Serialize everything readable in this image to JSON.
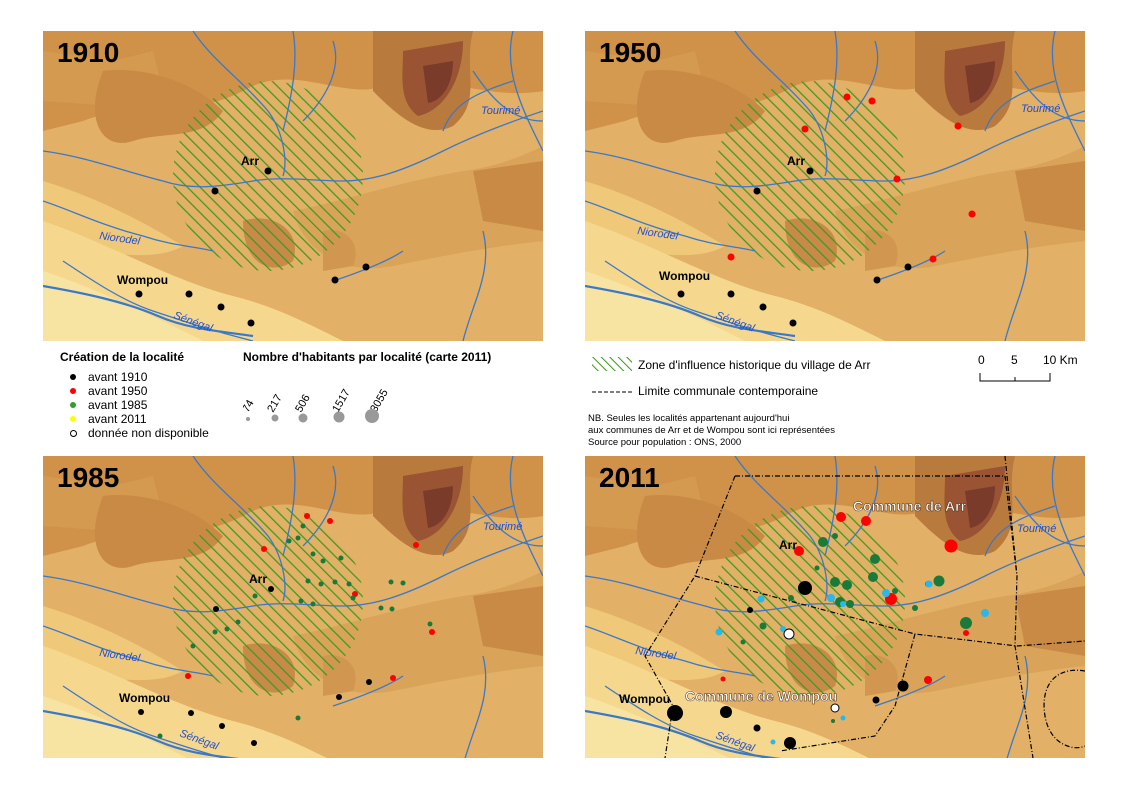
{
  "maps": [
    {
      "year": "1910",
      "labels": {
        "arr": "Arr",
        "wompou": "Wompou",
        "niorodel": "Niorodel",
        "senegal": "Sénégal",
        "tourime": "Tourimé"
      }
    },
    {
      "year": "1950",
      "labels": {
        "arr": "Arr",
        "wompou": "Wompou",
        "niorodel": "Niorodel",
        "senegal": "Sénégal",
        "tourime": "Tourimé"
      }
    },
    {
      "year": "1985",
      "labels": {
        "arr": "Arr",
        "wompou": "Wompou",
        "niorodel": "Niorodel",
        "senegal": "Sénégal",
        "tourime": "Tourimé"
      }
    },
    {
      "year": "2011",
      "labels": {
        "arr": "Arr",
        "wompou": "Wompou",
        "niorodel": "Niorodel",
        "senegal": "Sénégal",
        "tourime": "Tourimé",
        "commune_arr": "Commune de Arr",
        "commune_wompou": "Commune de Wompou"
      }
    }
  ],
  "legend": {
    "creation_title": "Création de la localité",
    "creation_items": [
      {
        "label": "avant 1910",
        "color": "#000000"
      },
      {
        "label": "avant 1950",
        "color": "#ff0000"
      },
      {
        "label": "avant 1985",
        "color": "#2ca02c"
      },
      {
        "label": "avant 2011",
        "color": "#ffff00"
      },
      {
        "label": "donnée non disponible",
        "color": "#ffffff"
      }
    ],
    "pop_title": "Nombre d'habitants par localité (carte 2011)",
    "pop_values": [
      "74",
      "217",
      "506",
      "1517",
      "3055"
    ],
    "zone_label": "Zone d'influence historique du village de Arr",
    "limit_label": "Limite communale contemporaine",
    "scale": {
      "labels": [
        "0",
        "5",
        "10 Km"
      ]
    },
    "note_lines": [
      "NB. Seules les localités appartenant aujourd'hui",
      "aux communes de Arr et de Wompou sont ici représentées",
      "Source pour population : ONS, 2000"
    ]
  }
}
